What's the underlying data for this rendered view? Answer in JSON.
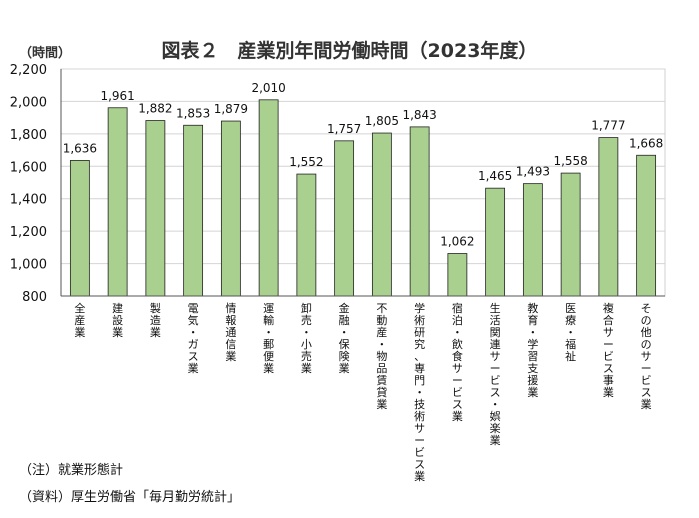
{
  "header": {
    "title": "図表２　産業別年間労働時間（2023年度）",
    "unit": "（時間）"
  },
  "footer": {
    "note": "（注）就業形態計",
    "source": "（資料）厚生労働省「毎月勤労統計」"
  },
  "chart_data": {
    "type": "bar",
    "title": "図表２　産業別年間労働時間（2023年度）",
    "ylabel": "（時間）",
    "ylim": [
      800,
      2200
    ],
    "yticks": [
      800,
      1000,
      1200,
      1400,
      1600,
      1800,
      2000,
      2200
    ],
    "ytick_labels": [
      "800",
      "1,000",
      "1,200",
      "1,400",
      "1,600",
      "1,800",
      "2,000",
      "2,200"
    ],
    "grid": true,
    "bar_color": "#a9d08e",
    "bar_edge_color": "#222222",
    "categories": [
      "全産業",
      "建設業",
      "製造業",
      "電気・ガス業",
      "情報通信業",
      "運輸・郵便業",
      "卸売・小売業",
      "金融・保険業",
      "不動産・物品賃貸業",
      "学術研究、専門・技術サービス業",
      "宿泊・飲食サービス業",
      "生活関連サービス・娯楽業",
      "教育・学習支援業",
      "医療・福祉",
      "複合サービス事業",
      "その他のサービス業"
    ],
    "values": [
      1636,
      1961,
      1882,
      1853,
      1879,
      2010,
      1552,
      1757,
      1805,
      1843,
      1062,
      1465,
      1493,
      1558,
      1777,
      1668
    ],
    "value_labels": [
      "1,636",
      "1,961",
      "1,882",
      "1,853",
      "1,879",
      "2,010",
      "1,552",
      "1,757",
      "1,805",
      "1,843",
      "1,062",
      "1,465",
      "1,493",
      "1,558",
      "1,777",
      "1,668"
    ]
  }
}
